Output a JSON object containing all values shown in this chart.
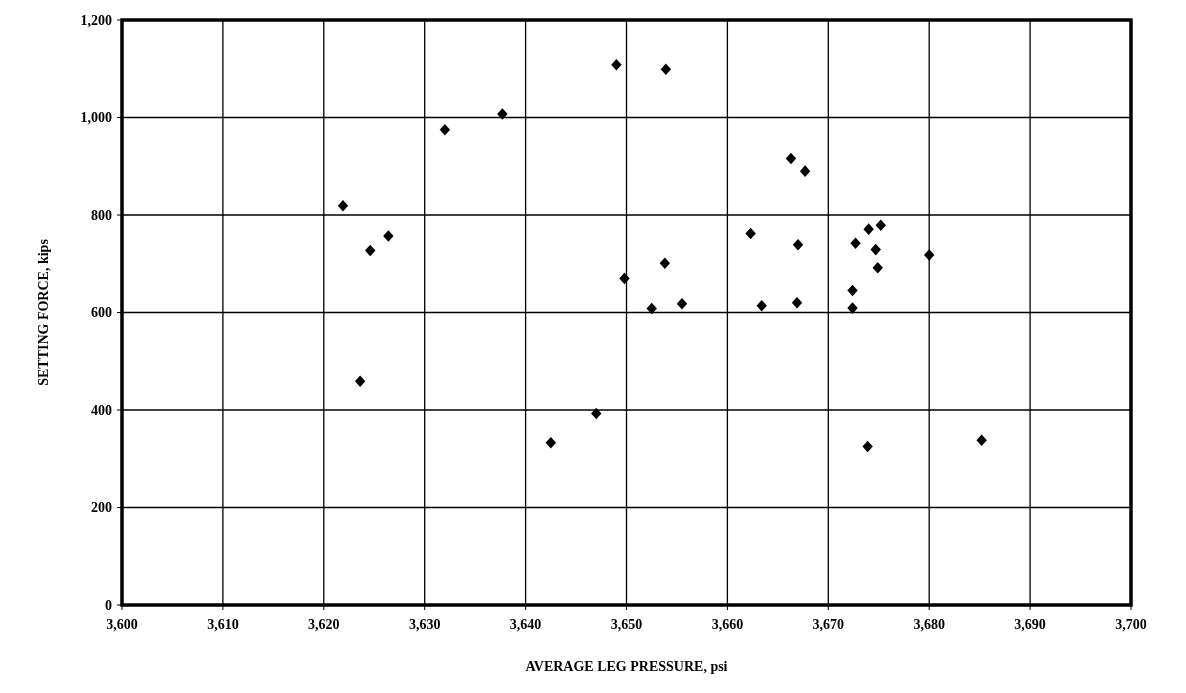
{
  "chart_data": {
    "type": "scatter",
    "xlabel": "AVERAGE LEG PRESSURE, psi",
    "ylabel": "SETTING FORCE, kips",
    "marker": "diamond",
    "grid": true,
    "xlim": [
      3600,
      3700
    ],
    "ylim": [
      0,
      1200
    ],
    "xticks": [
      {
        "value": 3600,
        "label": "3,600"
      },
      {
        "value": 3610,
        "label": "3,610"
      },
      {
        "value": 3620,
        "label": "3,620"
      },
      {
        "value": 3630,
        "label": "3,630"
      },
      {
        "value": 3640,
        "label": "3,640"
      },
      {
        "value": 3650,
        "label": "3,650"
      },
      {
        "value": 3660,
        "label": "3,660"
      },
      {
        "value": 3670,
        "label": "3,670"
      },
      {
        "value": 3680,
        "label": "3,680"
      },
      {
        "value": 3690,
        "label": "3,690"
      },
      {
        "value": 3700,
        "label": "3,700"
      }
    ],
    "yticks": [
      0,
      200,
      400,
      600,
      800,
      {
        "value": 1000,
        "label": "1,000"
      },
      {
        "value": 1200,
        "label": "1,200"
      }
    ],
    "series": [
      {
        "color": "#000000",
        "x": [
          3621.9,
          3626.4,
          3624.6,
          3623.6,
          3632.0,
          3637.7,
          3642.5,
          3647.0,
          3649.0,
          3649.8,
          3653.9,
          3653.8,
          3652.5,
          3655.5,
          3662.3,
          3663.4,
          3666.3,
          3667.7,
          3667.0,
          3666.9,
          3672.4,
          3672.4,
          3672.7,
          3674.0,
          3675.2,
          3674.7,
          3674.9,
          3673.9,
          3680.0,
          3685.2
        ],
        "values": [
          819,
          757,
          727,
          459,
          975,
          1007,
          333,
          393,
          1108,
          670,
          1099,
          701,
          608,
          618,
          762,
          614,
          916,
          890,
          739,
          620,
          645,
          609,
          742,
          771,
          779,
          729,
          692,
          325,
          718,
          338
        ]
      }
    ]
  }
}
